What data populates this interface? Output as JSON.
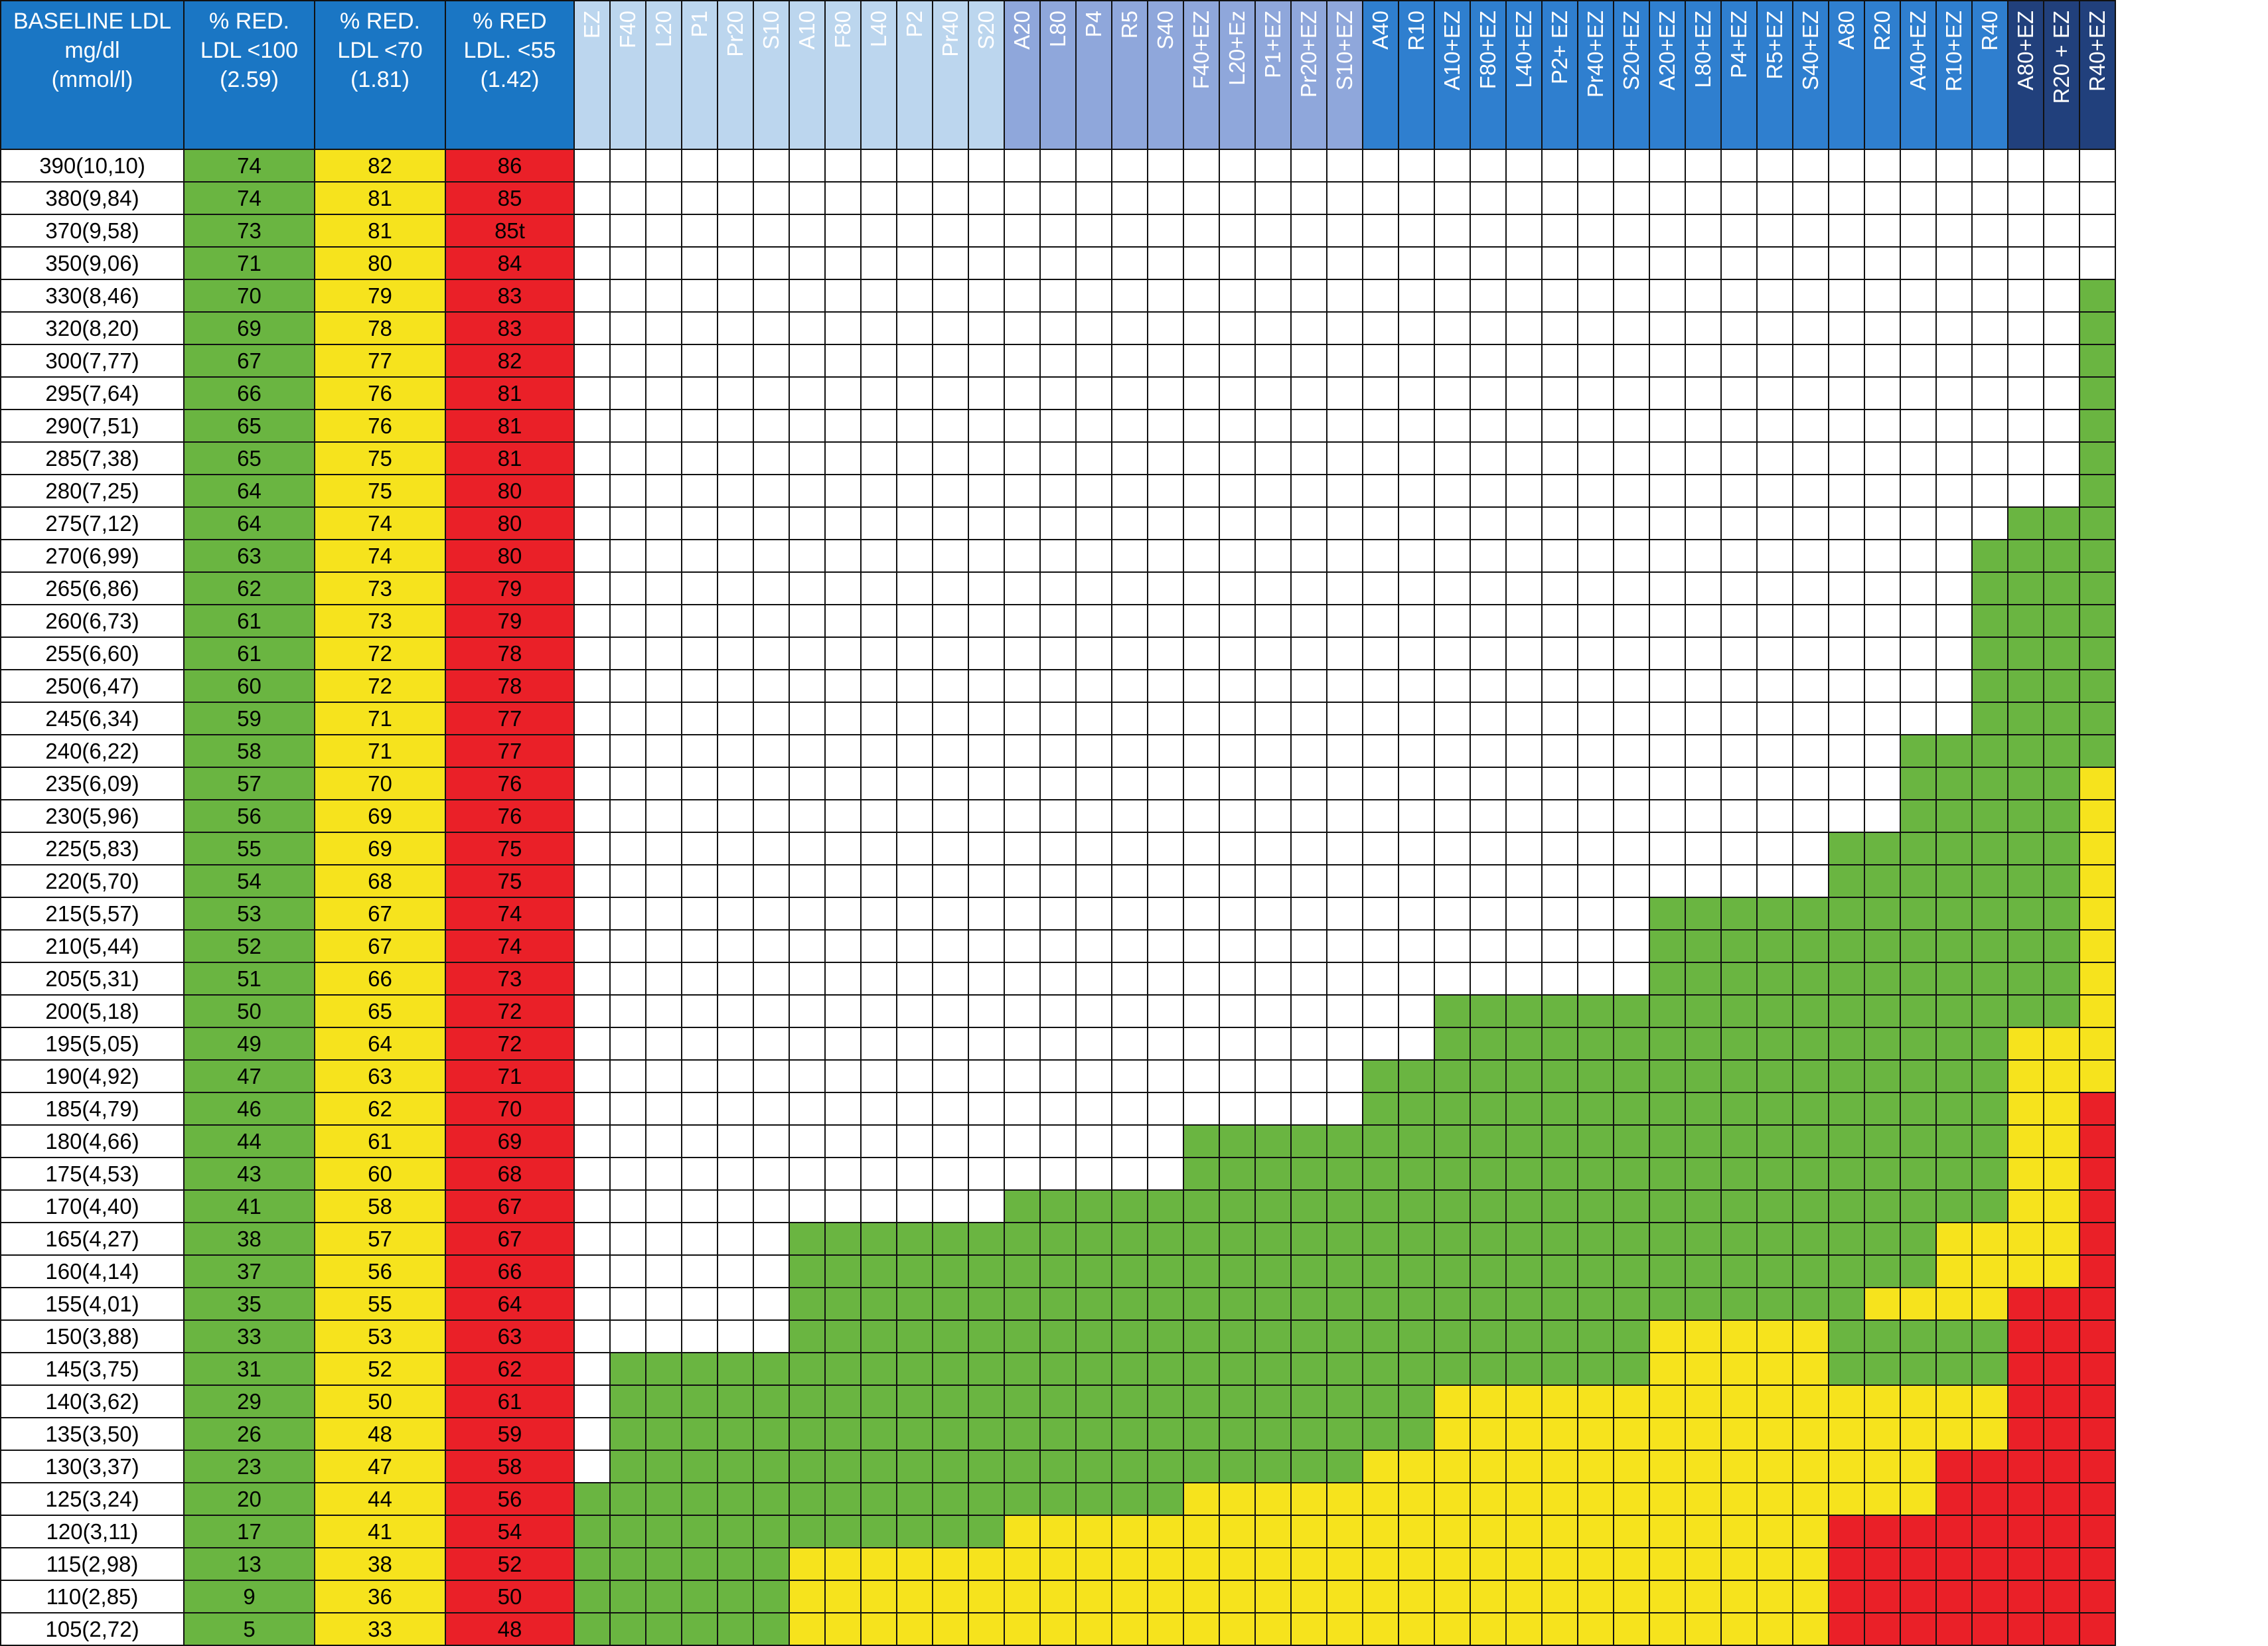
{
  "colors": {
    "header_blue": "#1a76c4",
    "header_light": "#bcd6ee",
    "header_mid": "#8fa7db",
    "header_bright": "#2f7fcf",
    "header_dark": "#21407c",
    "green": "#6ab541",
    "yellow": "#f6e31d",
    "red": "#ea2028",
    "white": "#ffffff"
  },
  "header": {
    "baseline": [
      "BASELINE LDL",
      "mg/dl",
      "(mmol/l)"
    ],
    "red100": [
      "% RED.",
      "LDL <100",
      "(2.59)"
    ],
    "red70": [
      "% RED.",
      "LDL <70",
      "(1.81)"
    ],
    "red55": [
      "% RED",
      "LDL. <55",
      "(1.42)"
    ]
  },
  "drugs": [
    {
      "label": "EZ",
      "group": "light"
    },
    {
      "label": "F40",
      "group": "light"
    },
    {
      "label": "L20",
      "group": "light"
    },
    {
      "label": "P1",
      "group": "light"
    },
    {
      "label": "Pr20",
      "group": "light"
    },
    {
      "label": "S10",
      "group": "light"
    },
    {
      "label": "A10",
      "group": "light"
    },
    {
      "label": "F80",
      "group": "light"
    },
    {
      "label": "L40",
      "group": "light"
    },
    {
      "label": "P2",
      "group": "light"
    },
    {
      "label": "Pr40",
      "group": "light"
    },
    {
      "label": "S20",
      "group": "light"
    },
    {
      "label": "A20",
      "group": "mid"
    },
    {
      "label": "L80",
      "group": "mid"
    },
    {
      "label": "P4",
      "group": "mid"
    },
    {
      "label": "R5",
      "group": "mid"
    },
    {
      "label": "S40",
      "group": "mid"
    },
    {
      "label": "F40+EZ",
      "group": "mid"
    },
    {
      "label": "L20+Ez",
      "group": "mid"
    },
    {
      "label": "P1+EZ",
      "group": "mid"
    },
    {
      "label": "Pr20+EZ",
      "group": "mid"
    },
    {
      "label": "S10+EZ",
      "group": "mid"
    },
    {
      "label": "A40",
      "group": "bright"
    },
    {
      "label": "R10",
      "group": "bright"
    },
    {
      "label": "A10+EZ",
      "group": "bright"
    },
    {
      "label": "F80+EZ",
      "group": "bright"
    },
    {
      "label": "L40+EZ",
      "group": "bright"
    },
    {
      "label": "P2+ EZ",
      "group": "bright"
    },
    {
      "label": "Pr40+EZ",
      "group": "bright"
    },
    {
      "label": "S20+EZ",
      "group": "bright"
    },
    {
      "label": "A20+EZ",
      "group": "bright"
    },
    {
      "label": "L80+EZ",
      "group": "bright"
    },
    {
      "label": "P4+EZ",
      "group": "bright"
    },
    {
      "label": "R5+EZ",
      "group": "bright"
    },
    {
      "label": "S40+EZ",
      "group": "bright"
    },
    {
      "label": "A80",
      "group": "bright"
    },
    {
      "label": "R20",
      "group": "bright"
    },
    {
      "label": "A40+EZ",
      "group": "bright"
    },
    {
      "label": "R10+EZ",
      "group": "bright"
    },
    {
      "label": "R40",
      "group": "bright"
    },
    {
      "label": "A80+EZ",
      "group": "dark"
    },
    {
      "label": "R20 + EZ",
      "group": "dark"
    },
    {
      "label": "R40+EZ",
      "group": "dark"
    }
  ],
  "rows": [
    {
      "baseline": "390(10,10)",
      "r100": "74",
      "r70": "82",
      "r55": "86",
      "cells": "WWWWWWWWWWWWWWWWWWWWWWWWWWWWWWWWWWWWWWWWWWW"
    },
    {
      "baseline": "380(9,84)",
      "r100": "74",
      "r70": "81",
      "r55": "85",
      "cells": "WWWWWWWWWWWWWWWWWWWWWWWWWWWWWWWWWWWWWWWWWWW"
    },
    {
      "baseline": "370(9,58)",
      "r100": "73",
      "r70": "81",
      "r55": "85t",
      "cells": "WWWWWWWWWWWWWWWWWWWWWWWWWWWWWWWWWWWWWWWWWWW"
    },
    {
      "baseline": "350(9,06)",
      "r100": "71",
      "r70": "80",
      "r55": "84",
      "cells": "WWWWWWWWWWWWWWWWWWWWWWWWWWWWWWWWWWWWWWWWWWW"
    },
    {
      "baseline": "330(8,46)",
      "r100": "70",
      "r70": "79",
      "r55": "83",
      "cells": "WWWWWWWWWWWWWWWWWWWWWWWWWWWWWWWWWWWWWWWWWWG"
    },
    {
      "baseline": "320(8,20)",
      "r100": "69",
      "r70": "78",
      "r55": "83",
      "cells": "WWWWWWWWWWWWWWWWWWWWWWWWWWWWWWWWWWWWWWWWWWG"
    },
    {
      "baseline": "300(7,77)",
      "r100": "67",
      "r70": "77",
      "r55": "82",
      "cells": "WWWWWWWWWWWWWWWWWWWWWWWWWWWWWWWWWWWWWWWWWWG"
    },
    {
      "baseline": "295(7,64)",
      "r100": "66",
      "r70": "76",
      "r55": "81",
      "cells": "WWWWWWWWWWWWWWWWWWWWWWWWWWWWWWWWWWWWWWWWWWG"
    },
    {
      "baseline": "290(7,51)",
      "r100": "65",
      "r70": "76",
      "r55": "81",
      "cells": "WWWWWWWWWWWWWWWWWWWWWWWWWWWWWWWWWWWWWWWWWWG"
    },
    {
      "baseline": "285(7,38)",
      "r100": "65",
      "r70": "75",
      "r55": "81",
      "cells": "WWWWWWWWWWWWWWWWWWWWWWWWWWWWWWWWWWWWWWWWWWG"
    },
    {
      "baseline": "280(7,25)",
      "r100": "64",
      "r70": "75",
      "r55": "80",
      "cells": "WWWWWWWWWWWWWWWWWWWWWWWWWWWWWWWWWWWWWWWWWWG"
    },
    {
      "baseline": "275(7,12)",
      "r100": "64",
      "r70": "74",
      "r55": "80",
      "cells": "WWWWWWWWWWWWWWWWWWWWWWWWWWWWWWWWWWWWWWWWGGG"
    },
    {
      "baseline": "270(6,99)",
      "r100": "63",
      "r70": "74",
      "r55": "80",
      "cells": "WWWWWWWWWWWWWWWWWWWWWWWWWWWWWWWWWWWWWWWGGGG"
    },
    {
      "baseline": "265(6,86)",
      "r100": "62",
      "r70": "73",
      "r55": "79",
      "cells": "WWWWWWWWWWWWWWWWWWWWWWWWWWWWWWWWWWWWWWWGGGG"
    },
    {
      "baseline": "260(6,73)",
      "r100": "61",
      "r70": "73",
      "r55": "79",
      "cells": "WWWWWWWWWWWWWWWWWWWWWWWWWWWWWWWWWWWWWWWGGGG"
    },
    {
      "baseline": "255(6,60)",
      "r100": "61",
      "r70": "72",
      "r55": "78",
      "cells": "WWWWWWWWWWWWWWWWWWWWWWWWWWWWWWWWWWWWWWWGGGG"
    },
    {
      "baseline": "250(6,47)",
      "r100": "60",
      "r70": "72",
      "r55": "78",
      "cells": "WWWWWWWWWWWWWWWWWWWWWWWWWWWWWWWWWWWWWWWGGGG"
    },
    {
      "baseline": "245(6,34)",
      "r100": "59",
      "r70": "71",
      "r55": "77",
      "cells": "WWWWWWWWWWWWWWWWWWWWWWWWWWWWWWWWWWWWWWWGGGG"
    },
    {
      "baseline": "240(6,22)",
      "r100": "58",
      "r70": "71",
      "r55": "77",
      "cells": "WWWWWWWWWWWWWWWWWWWWWWWWWWWWWWWWWWWWWGGGGGG"
    },
    {
      "baseline": "235(6,09)",
      "r100": "57",
      "r70": "70",
      "r55": "76",
      "cells": "WWWWWWWWWWWWWWWWWWWWWWWWWWWWWWWWWWWWWGGGGGY"
    },
    {
      "baseline": "230(5,96)",
      "r100": "56",
      "r70": "69",
      "r55": "76",
      "cells": "WWWWWWWWWWWWWWWWWWWWWWWWWWWWWWWWWWWWWGGGGGY"
    },
    {
      "baseline": "225(5,83)",
      "r100": "55",
      "r70": "69",
      "r55": "75",
      "cells": "WWWWWWWWWWWWWWWWWWWWWWWWWWWWWWWWWWWGGGGGGGY"
    },
    {
      "baseline": "220(5,70)",
      "r100": "54",
      "r70": "68",
      "r55": "75",
      "cells": "WWWWWWWWWWWWWWWWWWWWWWWWWWWWWWWWWWWGGGGGGGY"
    },
    {
      "baseline": "215(5,57)",
      "r100": "53",
      "r70": "67",
      "r55": "74",
      "cells": "WWWWWWWWWWWWWWWWWWWWWWWWWWWWWWGGGGGGGGGGGGY"
    },
    {
      "baseline": "210(5,44)",
      "r100": "52",
      "r70": "67",
      "r55": "74",
      "cells": "WWWWWWWWWWWWWWWWWWWWWWWWWWWWWWGGGGGGGGGGGGY"
    },
    {
      "baseline": "205(5,31)",
      "r100": "51",
      "r70": "66",
      "r55": "73",
      "cells": "WWWWWWWWWWWWWWWWWWWWWWWWWWWWWWGGGGGGGGGGGGY"
    },
    {
      "baseline": "200(5,18)",
      "r100": "50",
      "r70": "65",
      "r55": "72",
      "cells": "WWWWWWWWWWWWWWWWWWWWWWWWGGGGGGGGGGGGGGGGGGY"
    },
    {
      "baseline": "195(5,05)",
      "r100": "49",
      "r70": "64",
      "r55": "72",
      "cells": "WWWWWWWWWWWWWWWWWWWWWWWWGGGGGGGGGGGGGGGGYYY"
    },
    {
      "baseline": "190(4,92)",
      "r100": "47",
      "r70": "63",
      "r55": "71",
      "cells": "WWWWWWWWWWWWWWWWWWWWWWGGGGGGGGGGGGGGGGGGYYY"
    },
    {
      "baseline": "185(4,79)",
      "r100": "46",
      "r70": "62",
      "r55": "70",
      "cells": "WWWWWWWWWWWWWWWWWWWWWWGGGGGGGGGGGGGGGGGGYYR"
    },
    {
      "baseline": "180(4,66)",
      "r100": "44",
      "r70": "61",
      "r55": "69",
      "cells": "WWWWWWWWWWWWWWWWWGGGGGGGGGGGGGGGGGGGGGGGYYR"
    },
    {
      "baseline": "175(4,53)",
      "r100": "43",
      "r70": "60",
      "r55": "68",
      "cells": "WWWWWWWWWWWWWWWWWGGGGGGGGGGGGGGGGGGGGGGGYYR"
    },
    {
      "baseline": "170(4,40)",
      "r100": "41",
      "r70": "58",
      "r55": "67",
      "cells": "WWWWWWWWWWWWGGGGGGGGGGGGGGGGGGGGGGGGGGGGYYR"
    },
    {
      "baseline": "165(4,27)",
      "r100": "38",
      "r70": "57",
      "r55": "67",
      "cells": "WWWWWWGGGGGGGGGGGGGGGGGGGGGGGGGGGGGGGGYYYYR"
    },
    {
      "baseline": "160(4,14)",
      "r100": "37",
      "r70": "56",
      "r55": "66",
      "cells": "WWWWWWGGGGGGGGGGGGGGGGGGGGGGGGGGGGGGGGYYYYR"
    },
    {
      "baseline": "155(4,01)",
      "r100": "35",
      "r70": "55",
      "r55": "64",
      "cells": "WWWWWWGGGGGGGGGGGGGGGGGGGGGGGGGGGGGGYYYYRRR"
    },
    {
      "baseline": "150(3,88)",
      "r100": "33",
      "r70": "53",
      "r55": "63",
      "cells": "WWWWWWGGGGGGGGGGGGGGGGGGGGGGGGYYYYYGGGGGRRR"
    },
    {
      "baseline": "145(3,75)",
      "r100": "31",
      "r70": "52",
      "r55": "62",
      "cells": "WGGGGGGGGGGGGGGGGGGGGGGGGGGGGGYYYYYGGGGGRRR"
    },
    {
      "baseline": "140(3,62)",
      "r100": "29",
      "r70": "50",
      "r55": "61",
      "cells": "WGGGGGGGGGGGGGGGGGGGGGGGYYYYYYYYYYYYYYYYRRR"
    },
    {
      "baseline": "135(3,50)",
      "r100": "26",
      "r70": "48",
      "r55": "59",
      "cells": "WGGGGGGGGGGGGGGGGGGGGGGGYYYYYYYYYYYYYYYYRRR"
    },
    {
      "baseline": "130(3,37)",
      "r100": "23",
      "r70": "47",
      "r55": "58",
      "cells": "WGGGGGGGGGGGGGGGGGGGGGYYYYYYYYYYYYYYYYRRRRR"
    },
    {
      "baseline": "125(3,24)",
      "r100": "20",
      "r70": "44",
      "r55": "56",
      "cells": "GGGGGGGGGGGGGGGGGYYYYYYYYYYYYYYYYYYYYYRRRRR"
    },
    {
      "baseline": "120(3,11)",
      "r100": "17",
      "r70": "41",
      "r55": "54",
      "cells": "GGGGGGGGGGGGYYYYYYYYYYYYYYYYYYYYYYYRRRRRRRR"
    },
    {
      "baseline": "115(2,98)",
      "r100": "13",
      "r70": "38",
      "r55": "52",
      "cells": "GGGGGGYYYYYYYYYYYYYYYYYYYYYYYYYYYYYRRRRRRRR"
    },
    {
      "baseline": "110(2,85)",
      "r100": "9",
      "r70": "36",
      "r55": "50",
      "cells": "GGGGGGYYYYYYYYYYYYYYYYYYYYYYYYYYYYYRRRRRRRR"
    },
    {
      "baseline": "105(2,72)",
      "r100": "5",
      "r70": "33",
      "r55": "48",
      "cells": "GGGGGGYYYYYYYYYYYYYYYYYYYYYYYYYYYYYRRRRRRRR"
    }
  ]
}
